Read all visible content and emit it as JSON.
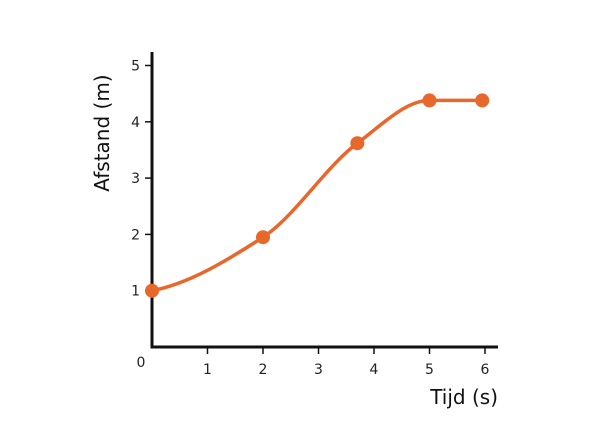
{
  "chart_data": {
    "type": "line",
    "title": "",
    "xlabel": "Tijd (s)",
    "ylabel": "Afstand (m)",
    "xlim": [
      0,
      6
    ],
    "ylim": [
      0,
      5
    ],
    "x_ticks": [
      1,
      2,
      3,
      4,
      5,
      6
    ],
    "y_ticks": [
      1,
      2,
      3,
      4,
      5
    ],
    "origin_label": "0",
    "grid": false,
    "smooth": true,
    "line_color": "#e8672a",
    "marker_color": "#e8672a",
    "axis_color": "#111111",
    "series": [
      {
        "x": [
          0,
          2,
          3.7,
          5,
          5.95
        ],
        "y": [
          1.0,
          1.95,
          3.62,
          4.38,
          4.38
        ]
      }
    ]
  }
}
